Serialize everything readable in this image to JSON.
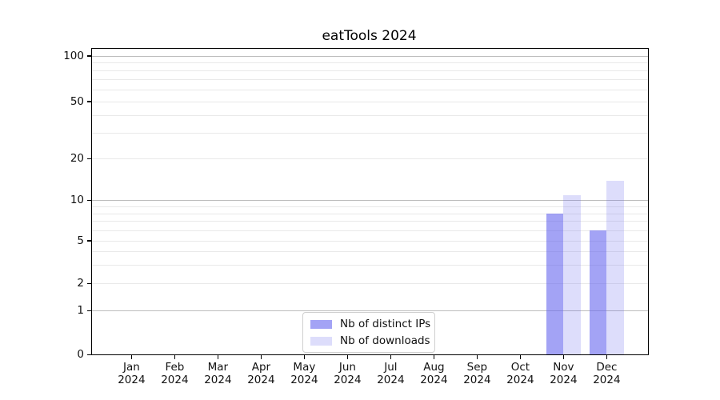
{
  "title": "eatTools 2024",
  "chart_data": {
    "type": "bar",
    "title": "eatTools 2024",
    "categories": [
      {
        "month": "Jan",
        "year": "2024"
      },
      {
        "month": "Feb",
        "year": "2024"
      },
      {
        "month": "Mar",
        "year": "2024"
      },
      {
        "month": "Apr",
        "year": "2024"
      },
      {
        "month": "May",
        "year": "2024"
      },
      {
        "month": "Jun",
        "year": "2024"
      },
      {
        "month": "Jul",
        "year": "2024"
      },
      {
        "month": "Aug",
        "year": "2024"
      },
      {
        "month": "Sep",
        "year": "2024"
      },
      {
        "month": "Oct",
        "year": "2024"
      },
      {
        "month": "Nov",
        "year": "2024"
      },
      {
        "month": "Dec",
        "year": "2024"
      }
    ],
    "series": [
      {
        "name": "Nb of distinct IPs",
        "color": "#6666ee",
        "alpha": 0.6,
        "rendered_color": "#a9a9f5",
        "values": [
          null,
          null,
          null,
          null,
          null,
          null,
          null,
          null,
          null,
          null,
          8,
          6
        ]
      },
      {
        "name": "Nb of downloads",
        "color": "#6666ee",
        "alpha": 0.22,
        "rendered_color": "#dcdcfb",
        "values": [
          null,
          null,
          null,
          null,
          null,
          null,
          null,
          null,
          null,
          null,
          11,
          14
        ]
      }
    ],
    "xlabel": "",
    "ylabel": "",
    "y_axis": {
      "scale": "log-like with zero baseline",
      "tick_labels": [
        "100",
        "50",
        "20",
        "10",
        "5",
        "2",
        "1",
        "0"
      ],
      "tick_values": [
        100,
        50,
        20,
        10,
        5,
        2,
        1,
        0
      ],
      "major_values": [
        100,
        10,
        1
      ],
      "minor_values": [
        90,
        80,
        70,
        60,
        40,
        30,
        9,
        8,
        7,
        6,
        4,
        3
      ],
      "ylim": [
        0,
        110
      ]
    },
    "legend": {
      "position": "lower center",
      "frame": true
    },
    "grid": true
  },
  "colors": {
    "grid_major": "#bdbdbd",
    "grid_minor": "#e9e9e9",
    "axis": "#000000",
    "background": "#ffffff"
  }
}
